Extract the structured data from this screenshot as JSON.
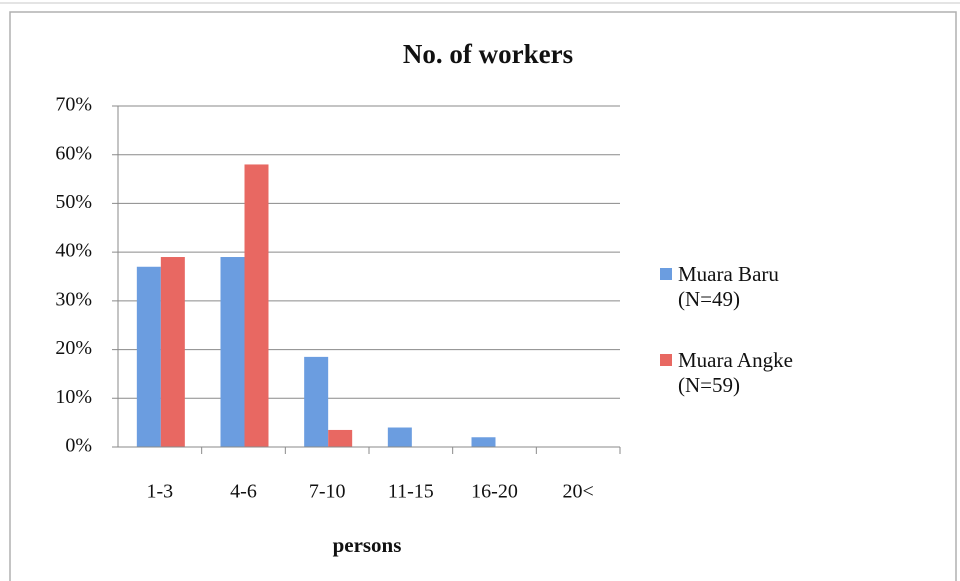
{
  "chart_data": {
    "type": "bar",
    "title": "No. of workers",
    "x_label": "persons",
    "categories": [
      "1-3",
      "4-6",
      "7-10",
      "11-15",
      "16-20",
      "20<"
    ],
    "series": [
      {
        "name": "Muara Baru (N=49)",
        "color": "#6b9de0",
        "values": [
          37,
          39,
          18.5,
          4,
          2,
          0
        ]
      },
      {
        "name": "Muara Angke (N=59)",
        "color": "#e86862",
        "values": [
          39,
          58,
          3.5,
          0,
          0,
          0
        ]
      }
    ],
    "ylim": [
      0,
      70
    ],
    "yticks": [
      {
        "value": 0,
        "label": "0%"
      },
      {
        "value": 10,
        "label": "10%"
      },
      {
        "value": 20,
        "label": "20%"
      },
      {
        "value": 30,
        "label": "30%"
      },
      {
        "value": 40,
        "label": "40%"
      },
      {
        "value": 50,
        "label": "50%"
      },
      {
        "value": 60,
        "label": "60%"
      },
      {
        "value": 70,
        "label": "70%"
      }
    ],
    "grid": true,
    "legend": "right"
  }
}
